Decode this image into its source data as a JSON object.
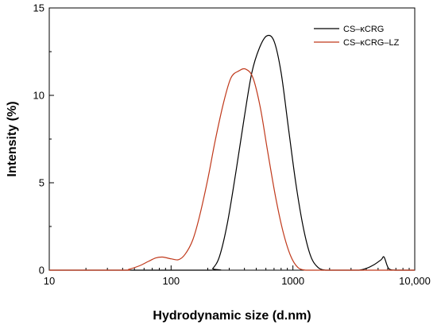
{
  "chart_data": {
    "type": "line",
    "xlabel": "Hydrodynamic size (d.nm)",
    "ylabel": "Intensity (%)",
    "x_scale": "log",
    "xlim": [
      10,
      10000
    ],
    "ylim": [
      0,
      15
    ],
    "x_ticks": [
      10,
      100,
      1000,
      10000
    ],
    "x_tick_labels": [
      "10",
      "100",
      "1000",
      "10,000"
    ],
    "y_ticks": [
      0,
      5,
      10,
      15
    ],
    "y_tick_labels": [
      "0",
      "5",
      "10",
      "15"
    ],
    "grid": false,
    "legend_position": "top-right",
    "series": [
      {
        "name": "CS–κCRG",
        "color": "#000000",
        "x": [
          10,
          200,
          220,
          250,
          290,
          340,
          400,
          460,
          530,
          610,
          700,
          800,
          920,
          1060,
          1220,
          1400,
          1610,
          1850,
          2130,
          2450,
          3000,
          3500,
          4000,
          4600,
          5300,
          5600,
          6100,
          7000,
          10000
        ],
        "y": [
          0,
          0,
          0.1,
          0.8,
          2.7,
          5.6,
          8.8,
          11.3,
          12.7,
          13.4,
          13.1,
          11.3,
          8.1,
          4.9,
          2.4,
          0.8,
          0.15,
          0,
          0,
          0,
          0,
          0,
          0.1,
          0.3,
          0.6,
          0.75,
          0.1,
          0,
          0
        ]
      },
      {
        "name": "CS–κCRG–LZ",
        "color": "#c0391b",
        "x": [
          10,
          40,
          45,
          55,
          65,
          75,
          85,
          100,
          115,
          130,
          150,
          170,
          200,
          230,
          270,
          310,
          360,
          410,
          470,
          540,
          620,
          720,
          830,
          960,
          1100,
          1270,
          1460,
          1650,
          10000
        ],
        "y": [
          0,
          0,
          0.05,
          0.25,
          0.5,
          0.7,
          0.75,
          0.65,
          0.6,
          0.9,
          1.7,
          3.0,
          5.2,
          7.4,
          9.6,
          11.0,
          11.4,
          11.5,
          11.0,
          9.3,
          6.8,
          4.2,
          2.2,
          0.8,
          0.15,
          0,
          0,
          0,
          0
        ]
      }
    ]
  }
}
